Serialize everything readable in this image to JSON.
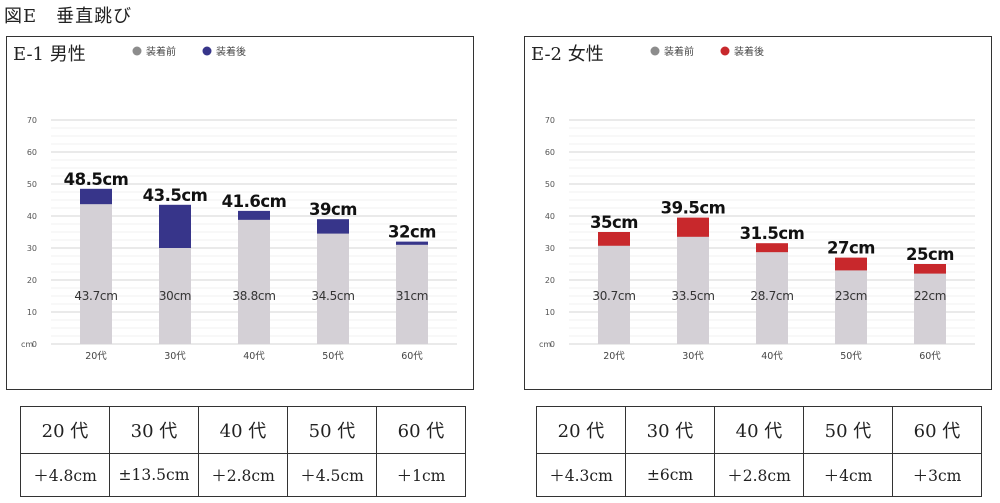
{
  "figure_title": "図E　垂直跳び",
  "unit_label": "cm",
  "legend": {
    "before": "装着前",
    "after": "装着後"
  },
  "colors": {
    "before": "#d4d0d6",
    "male_after": "#37358a",
    "female_after": "#c8282c",
    "legend_before": "#8c8c8c",
    "grid": "#e2e2e2"
  },
  "chart_data": [
    {
      "type": "bar",
      "title": "E-1 男性",
      "categories": [
        "20代",
        "30代",
        "40代",
        "50代",
        "60代"
      ],
      "ylim": [
        0,
        70
      ],
      "yticks": [
        "0",
        "10",
        "20",
        "30",
        "40",
        "50",
        "60",
        "70"
      ],
      "grid": true,
      "legend_position": "top",
      "series": [
        {
          "name": "装着前",
          "values": [
            43.7,
            30,
            38.8,
            34.5,
            31
          ],
          "labels": [
            "43.7cm",
            "30cm",
            "38.8cm",
            "34.5cm",
            "31cm"
          ]
        },
        {
          "name": "装着後",
          "values": [
            48.5,
            43.5,
            41.6,
            39,
            32
          ],
          "labels": [
            "48.5cm",
            "43.5cm",
            "41.6cm",
            "39cm",
            "32cm"
          ]
        }
      ]
    },
    {
      "type": "bar",
      "title": "E-2 女性",
      "categories": [
        "20代",
        "30代",
        "40代",
        "50代",
        "60代"
      ],
      "ylim": [
        0,
        70
      ],
      "yticks": [
        "0",
        "10",
        "20",
        "30",
        "40",
        "50",
        "60",
        "70"
      ],
      "grid": true,
      "legend_position": "top",
      "series": [
        {
          "name": "装着前",
          "values": [
            30.7,
            33.5,
            28.7,
            23,
            22
          ],
          "labels": [
            "30.7cm",
            "33.5cm",
            "28.7cm",
            "23cm",
            "22cm"
          ]
        },
        {
          "name": "装着後",
          "values": [
            35,
            39.5,
            31.5,
            27,
            25
          ],
          "labels": [
            "35cm",
            "39.5cm",
            "31.5cm",
            "27cm",
            "25cm"
          ]
        }
      ]
    }
  ],
  "tables": [
    {
      "headers": [
        "20 代",
        "30 代",
        "40 代",
        "50 代",
        "60 代"
      ],
      "values": [
        "＋4.8cm",
        "±13.5cm",
        "＋2.8cm",
        "＋4.5cm",
        "＋1cm"
      ]
    },
    {
      "headers": [
        "20 代",
        "30 代",
        "40 代",
        "50 代",
        "60 代"
      ],
      "values": [
        "＋4.3cm",
        "±6cm",
        "＋2.8cm",
        "＋4cm",
        "＋3cm"
      ]
    }
  ]
}
